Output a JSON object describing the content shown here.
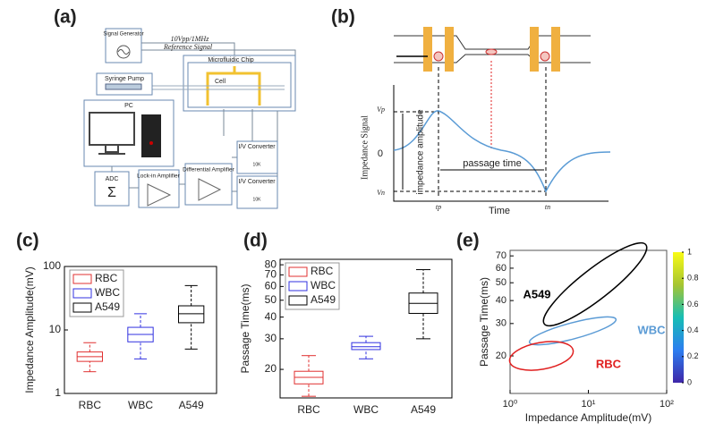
{
  "panel_labels": [
    "(a)",
    "(b)",
    "(c)",
    "(d)",
    "(e)"
  ],
  "diagram_a": {
    "signal_generator": "Signal Generator",
    "signal_spec": "10Vpp/1MHz",
    "reference": "Reference Signal",
    "chip": "Microfluidic Chip",
    "cell": "Cell",
    "pump": "Syringe Pump",
    "pc": "PC",
    "iv1": "I/V Converter",
    "iv2": "I/V Converter",
    "r1": "10K",
    "r2": "10K",
    "diff": "Differential Amplifier",
    "lockin": "Lock-in Amplifier",
    "adc": "ADC"
  },
  "diagram_b": {
    "y_label": "Impedance Signal",
    "vp": "Vp",
    "vn": "Vn",
    "zero": "0",
    "amplitude": "impedance amplitude",
    "passage": "passage time",
    "x_label": "Time",
    "tp": "tp",
    "tn": "tn"
  },
  "chart_data": [
    {
      "type": "box",
      "y_label": "Impedance Amplitude(mV)",
      "log_y": true,
      "categories": [
        "RBC",
        "WBC",
        "A549"
      ],
      "colors": [
        "#e03030",
        "#3030e0",
        "#000000"
      ],
      "boxes": [
        {
          "low": 2.2,
          "q1": 3.2,
          "median": 3.8,
          "q3": 4.5,
          "high": 6.3
        },
        {
          "low": 3.5,
          "q1": 6.5,
          "median": 8.5,
          "q3": 11,
          "high": 18
        },
        {
          "low": 5,
          "q1": 13,
          "median": 18,
          "q3": 24,
          "high": 50
        }
      ],
      "ylim": [
        1,
        100
      ],
      "yticks": [
        1,
        10,
        100
      ],
      "legend": "upper-left"
    },
    {
      "type": "box",
      "y_label": "Passage Time(ms)",
      "log_y": true,
      "categories": [
        "RBC",
        "WBC",
        "A549"
      ],
      "colors": [
        "#e03030",
        "#3030e0",
        "#000000"
      ],
      "boxes": [
        {
          "low": 14,
          "q1": 16.5,
          "median": 18,
          "q3": 19.5,
          "high": 24
        },
        {
          "low": 23,
          "q1": 26,
          "median": 27,
          "q3": 28.5,
          "high": 31
        },
        {
          "low": 30,
          "q1": 42,
          "median": 48,
          "q3": 55,
          "high": 75
        }
      ],
      "ylim": [
        13.7,
        86
      ],
      "yticks": [
        20,
        30,
        40,
        50,
        60,
        70,
        80
      ],
      "legend": "upper-left"
    },
    {
      "type": "scatter",
      "x_label": "Impedance Amplitude(mV)",
      "y_label": "Passage Time(ms)",
      "log_x": true,
      "log_y": true,
      "xlim": [
        1,
        100
      ],
      "xticks": [
        {
          "value": 1,
          "label": "10⁰"
        },
        {
          "value": 10,
          "label": "10¹"
        },
        {
          "value": 100,
          "label": "10²"
        }
      ],
      "ylim": [
        12.5,
        75
      ],
      "yticks": [
        20,
        30,
        40,
        50,
        60,
        70
      ],
      "clusters": [
        {
          "label": "A549",
          "color": "#000000"
        },
        {
          "label": "WBC",
          "color": "#5b9bd5"
        },
        {
          "label": "RBC",
          "color": "#e02020"
        }
      ],
      "colorbar": {
        "lim": [
          0,
          1
        ],
        "ticks": [
          0,
          0.2,
          0.4,
          0.6,
          0.8,
          1
        ]
      }
    }
  ]
}
